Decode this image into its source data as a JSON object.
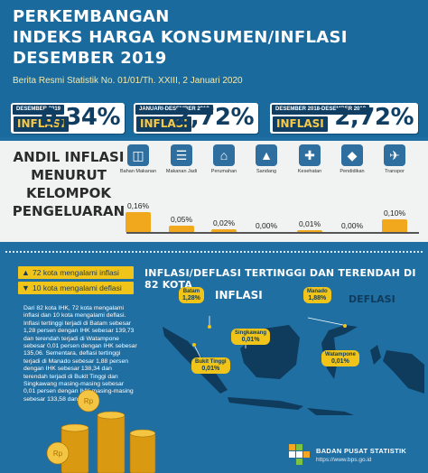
{
  "title": {
    "line1": "PERKEMBANGAN",
    "line2": "INDEKS HARGA KONSUMEN/INFLASI",
    "line3": "DESEMBER 2019",
    "subtitle": "Berita Resmi Statistik No. 01/01/Th. XXIII, 2 Januari 2020"
  },
  "cards": [
    {
      "tag": "DESEMBER 2019",
      "label": "INFLASI",
      "value": "0,34%"
    },
    {
      "tag": "JANUARI-DESEMBER 2019",
      "label": "INFLASI",
      "value": "2,72%"
    },
    {
      "tag": "DESEMBER 2018-DESEMBER 2019",
      "label": "INFLASI",
      "value": "2,72%"
    }
  ],
  "andil": {
    "title_lines": [
      "ANDIL INFLASI",
      "MENURUT",
      "KELOMPOK",
      "PENGELUARAN"
    ],
    "categories": [
      {
        "label": "Bahan Makanan",
        "value_text": "0,16%",
        "value": 0.16,
        "icon": "grocery-basket-icon"
      },
      {
        "label": "Makanan Jadi",
        "value_text": "0,05%",
        "value": 0.05,
        "icon": "burger-icon"
      },
      {
        "label": "Perumahan",
        "value_text": "0,02%",
        "value": 0.02,
        "icon": "house-icon"
      },
      {
        "label": "Sandang",
        "value_text": "0,00%",
        "value": 0.0,
        "icon": "dress-icon"
      },
      {
        "label": "Kesehatan",
        "value_text": "0,01%",
        "value": 0.01,
        "icon": "medical-kit-icon"
      },
      {
        "label": "Pendidikan",
        "value_text": "0,00%",
        "value": 0.0,
        "icon": "graduation-cap-icon"
      },
      {
        "label": "Transpor",
        "value_text": "0,10%",
        "value": 0.1,
        "icon": "airplane-icon"
      }
    ]
  },
  "legend": {
    "up": "72 kota mengalami inflasi",
    "down": "10 kota mengalami deflasi"
  },
  "paragraph": "Dari 82 kota IHK, 72 kota mengalami inflasi dan 10 kota mengalami deflasi. Inflasi tertinggi terjadi di Batam sebesar 1,28 persen dengan IHK sebesar 139,73 dan terendah terjadi di Watampone sebesar 0,01 persen dengan IHK  sebesar 135,06. Sementara, deflasi tertinggi terjadi di Manado sebesar 1,88 persen dengan IHK sebesar 138,34 dan terendah terjadi di Bukit Tinggi dan Singkawang masing-masing sebesar 0,01 persen dengan IHK masing-masing sebesar 133,58 dan 137,78.",
  "map": {
    "title": "INFLASI/DEFLASI TERTINGGI DAN TERENDAH DI 82 KOTA",
    "inflasi_label": "INFLASI",
    "deflasi_label": "DEFLASI",
    "cities": [
      {
        "name": "Batam",
        "value": "1,28%"
      },
      {
        "name": "Manado",
        "value": "1,88%"
      },
      {
        "name": "Singkawang",
        "value": "0,01%"
      },
      {
        "name": "Bukit Tinggi",
        "value": "0,01%"
      },
      {
        "name": "Watampone",
        "value": "0,01%"
      }
    ]
  },
  "footer": {
    "org": "BADAN PUSAT STATISTIK",
    "url": "https://www.bps.go.id"
  },
  "colors": {
    "background": "#1f6fa3",
    "accent_yellow": "#f0c419",
    "bar_orange": "#f2a81d",
    "navy": "#103e63"
  }
}
